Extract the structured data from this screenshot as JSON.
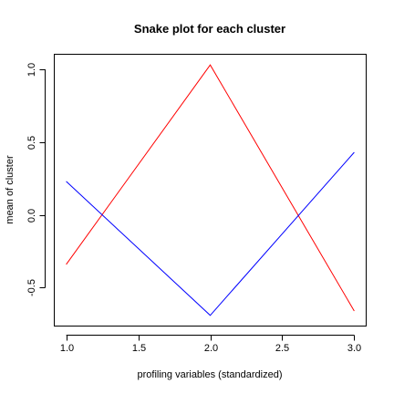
{
  "chart_data": {
    "type": "line",
    "title": "Snake plot for each cluster",
    "xlabel": "profiling variables (standardized)",
    "ylabel": "mean of cluster",
    "xlim": [
      0.92,
      3.08
    ],
    "ylim": [
      -0.76,
      1.1
    ],
    "xticks": [
      1.0,
      1.5,
      2.0,
      2.5,
      3.0
    ],
    "xtick_labels": [
      "1.0",
      "1.5",
      "2.0",
      "2.5",
      "3.0"
    ],
    "yticks": [
      -0.5,
      0.0,
      0.5,
      1.0
    ],
    "ytick_labels": [
      "-0.5",
      "0.0",
      "0.5",
      "1.0"
    ],
    "grid": false,
    "series": [
      {
        "x": [
          1,
          2,
          3
        ],
        "values": [
          -0.34,
          1.03,
          -0.66
        ],
        "color": "#ff0000"
      },
      {
        "x": [
          1,
          2,
          3
        ],
        "values": [
          0.23,
          -0.69,
          0.43
        ],
        "color": "#0000ff"
      }
    ]
  }
}
